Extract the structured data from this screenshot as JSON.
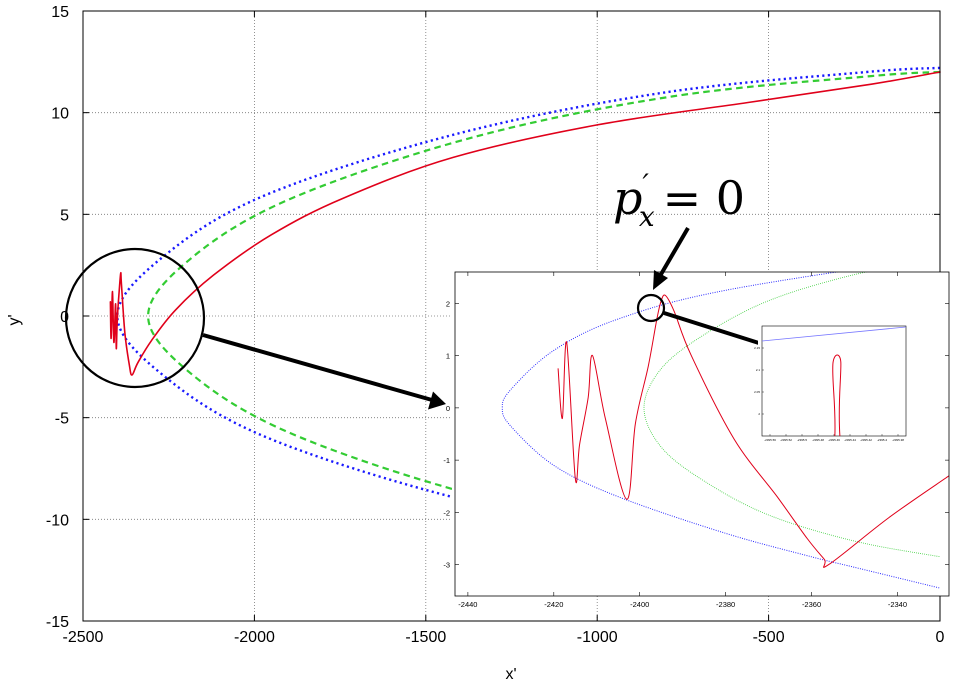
{
  "chart_data": {
    "type": "line",
    "xlabel": "x'",
    "ylabel": "y'",
    "xlim": [
      -2500,
      0
    ],
    "ylim": [
      -15,
      15
    ],
    "xticks": [
      "-2500",
      "-2000",
      "-1500",
      "-1000",
      "-500",
      "0"
    ],
    "yticks": [
      "15",
      "10",
      "5",
      "0",
      "-5",
      "-10",
      "-15"
    ],
    "grid": true,
    "series": [
      {
        "color": "#1a1aff",
        "style": "dotted",
        "x": [
          0,
          -214,
          -800,
          -1400,
          -1960,
          -2260,
          -2400,
          -2260,
          -1960,
          -1400,
          -800,
          -214,
          0
        ],
        "y": [
          12.2,
          12,
          11,
          9,
          6,
          3,
          0,
          -3,
          -6,
          -9,
          -11,
          -12,
          -12.2
        ]
      },
      {
        "color": "#33cc33",
        "style": "dashed",
        "x": [
          0,
          -201,
          -780,
          -1360,
          -1890,
          -2180,
          -2310,
          -2180,
          -1890,
          -1360,
          -780,
          -201,
          0
        ],
        "y": [
          12,
          11.8,
          10.8,
          8.8,
          5.8,
          2.9,
          0,
          -2.9,
          -5.8,
          -8.8,
          -10.8,
          -11.8,
          -12
        ]
      },
      {
        "color": "#e0001a",
        "style": "solid",
        "x": [
          0,
          -200,
          -560,
          -1000,
          -1420,
          -1740,
          -1950,
          -2120,
          -2230,
          -2300,
          -2340,
          -2357,
          -2365,
          -2378,
          -2388,
          -2390,
          -2395,
          -2400,
          -2403,
          -2405,
          -2410,
          -2414,
          -2418,
          -2420
        ],
        "y": [
          12,
          11.4,
          10.5,
          9.4,
          7.8,
          5.8,
          4.0,
          2.0,
          0.3,
          -1.2,
          -2.3,
          -2.9,
          -2.4,
          -0.8,
          1.6,
          2.1,
          1.1,
          -0.2,
          -1.6,
          0.6,
          -1.3,
          1.2,
          -1.1,
          0.7
        ]
      }
    ],
    "inset": {
      "xlim": [
        -2443,
        -2328
      ],
      "ylim": [
        -3.6,
        2.6
      ],
      "xticks": [
        "-2440",
        "-2420",
        "-2400",
        "-2380",
        "-2360",
        "-2340"
      ],
      "yticks": [
        "2",
        "1",
        "0",
        "-1",
        "-2",
        "-3"
      ],
      "series": [
        {
          "color": "#1a1aff",
          "style": "dotted",
          "x": [
            -2330,
            -2380,
            -2405,
            -2420,
            -2430,
            -2432,
            -2430,
            -2420,
            -2405,
            -2380,
            -2360,
            -2350,
            -2330
          ],
          "y": [
            2.9,
            2.25,
            1.7,
            1.1,
            0.35,
            0,
            -0.35,
            -1.1,
            -1.7,
            -2.4,
            -2.85,
            -3.05,
            -3.45
          ]
        },
        {
          "color": "#33cc33",
          "style": "dotted",
          "x": [
            -2330,
            -2350,
            -2370,
            -2385,
            -2395,
            -2399,
            -2395,
            -2385,
            -2370,
            -2350,
            -2330
          ],
          "y": [
            2.85,
            2.55,
            2.05,
            1.4,
            0.75,
            0,
            -0.75,
            -1.4,
            -2.05,
            -2.55,
            -2.85
          ]
        },
        {
          "color": "#e0001a",
          "style": "solid",
          "x": [
            -2328,
            -2342,
            -2356,
            -2357,
            -2361,
            -2368,
            -2378,
            -2388,
            -2392,
            -2394,
            -2395,
            -2396,
            -2398,
            -2401,
            -2403,
            -2408,
            -2411,
            -2412,
            -2414,
            -2415,
            -2417,
            -2418,
            -2419
          ],
          "y": [
            -1.3,
            -2.1,
            -3.0,
            -2.9,
            -2.5,
            -1.7,
            -0.6,
            1.0,
            1.85,
            2.15,
            2.05,
            1.7,
            0.8,
            -0.3,
            -1.75,
            -0.2,
            1.0,
            0.2,
            -0.7,
            -1.35,
            1.25,
            -0.2,
            0.75
          ]
        }
      ]
    },
    "inset2": {
      "xticks": [
        "-2395.56",
        "-2395.52",
        "-2395.5",
        "-2395.48",
        "-2395.46",
        "-2395.44",
        "-2395.42",
        "-2395.4",
        "-2395.38"
      ],
      "yticks": [
        "2.15",
        "2.1",
        "2.05",
        "2"
      ],
      "series": [
        {
          "color": "#7777ff",
          "style": "solid"
        },
        {
          "color": "#e0001a",
          "style": "solid"
        }
      ]
    },
    "annotation": {
      "var": "p",
      "sup": "′",
      "sub": "x",
      "eq": "= 0"
    }
  }
}
